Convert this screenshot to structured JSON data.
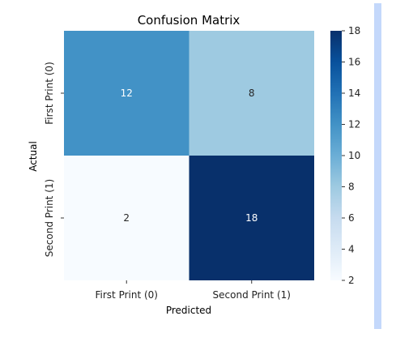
{
  "chart_data": {
    "type": "heatmap",
    "title": "Confusion Matrix",
    "xlabel": "Predicted",
    "ylabel": "Actual",
    "x_categories": [
      "First Print (0)",
      "Second Print (1)"
    ],
    "y_categories": [
      "First Print (0)",
      "Second Print (1)"
    ],
    "values": [
      [
        12,
        8
      ],
      [
        2,
        18
      ]
    ],
    "colormap": "Blues",
    "colorbar": {
      "range": [
        2,
        18
      ],
      "ticks": [
        2,
        4,
        6,
        8,
        10,
        12,
        14,
        16,
        18
      ]
    },
    "colors": {
      "scale": [
        "#f7fbff",
        "#deebf7",
        "#c6dbef",
        "#9ecae1",
        "#6baed6",
        "#4292c6",
        "#2171b5",
        "#08519c",
        "#08306b"
      ]
    }
  }
}
